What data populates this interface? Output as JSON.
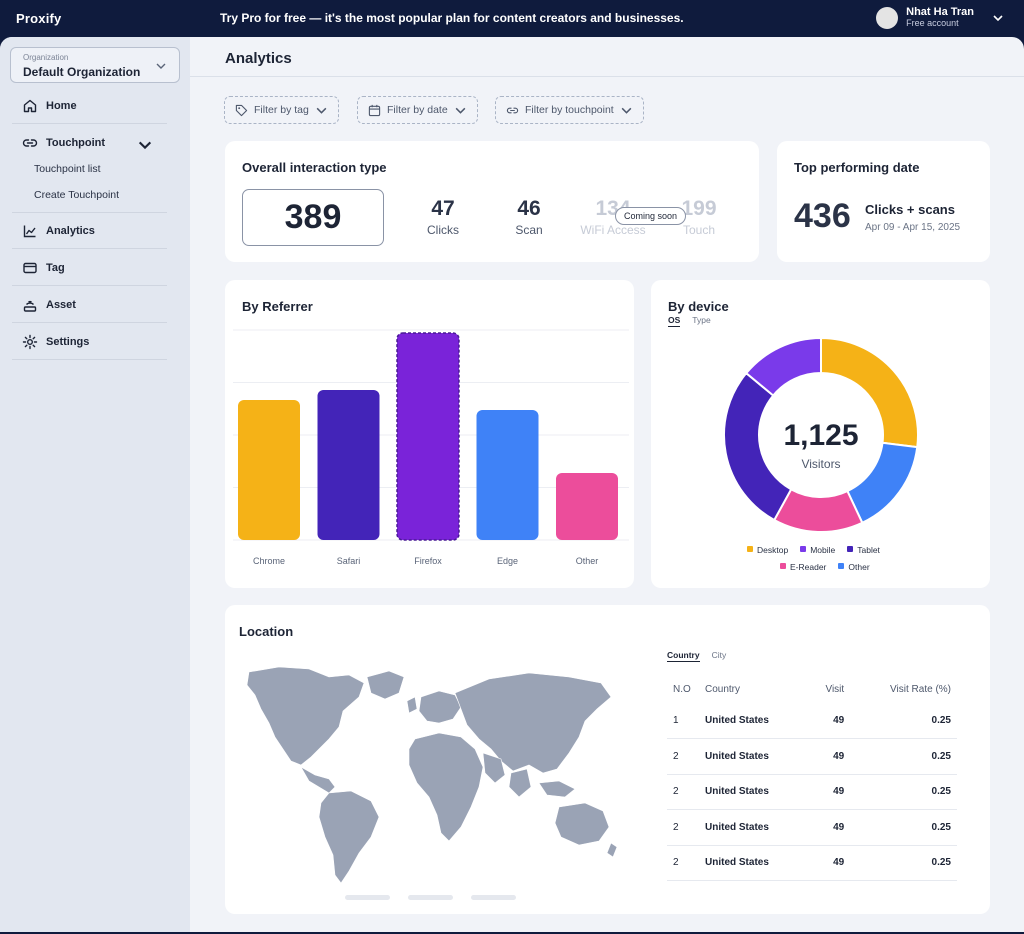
{
  "topbar": {
    "brand": "Proxify",
    "promo": "Try Pro for free — it's the most popular plan for content creators and businesses.",
    "user_name": "Nhat Ha Tran",
    "user_plan": "Free account"
  },
  "sidebar": {
    "org_label": "Organization",
    "org_name": "Default Organization",
    "items": [
      {
        "label": "Home",
        "icon": "home-icon"
      },
      {
        "label": "Touchpoint",
        "icon": "link-icon"
      },
      {
        "label": "Analytics",
        "icon": "chart-icon"
      },
      {
        "label": "Tag",
        "icon": "tag-card-icon"
      },
      {
        "label": "Asset",
        "icon": "asset-icon"
      },
      {
        "label": "Settings",
        "icon": "gear-icon"
      }
    ],
    "touchpoint_sub": [
      "Touchpoint list",
      "Create Touchpoint"
    ]
  },
  "page": {
    "title": "Analytics",
    "filters": [
      "Filter by tag",
      "Filter by date",
      "Filter by touchpoint"
    ]
  },
  "overall": {
    "title": "Overall interaction type",
    "total": "389",
    "stats": [
      {
        "num": "47",
        "label": "Clicks"
      },
      {
        "num": "46",
        "label": "Scan"
      },
      {
        "num": "134",
        "label": "WiFi Access"
      },
      {
        "num": "199",
        "label": "Touch"
      }
    ],
    "coming_soon": "Coming soon"
  },
  "top_date": {
    "title": "Top performing date",
    "value": "436",
    "metric": "Clicks + scans",
    "range": "Apr 09 - Apr 15, 2025"
  },
  "referrer": {
    "title": "By Referrer"
  },
  "device": {
    "title": "By device",
    "tabs": [
      "OS",
      "Type"
    ],
    "center_value": "1,125",
    "center_label": "Visitors"
  },
  "location": {
    "title": "Location",
    "tabs": [
      "Country",
      "City"
    ],
    "columns": [
      "N.O",
      "Country",
      "Visit",
      "Visit Rate (%)"
    ],
    "rows": [
      {
        "no": "1",
        "country": "United States",
        "visit": "49",
        "rate": "0.25"
      },
      {
        "no": "2",
        "country": "United States",
        "visit": "49",
        "rate": "0.25"
      },
      {
        "no": "2",
        "country": "United States",
        "visit": "49",
        "rate": "0.25"
      },
      {
        "no": "2",
        "country": "United States",
        "visit": "49",
        "rate": "0.25"
      },
      {
        "no": "2",
        "country": "United States",
        "visit": "49",
        "rate": "0.25"
      }
    ]
  },
  "chart_data": [
    {
      "type": "bar",
      "title": "By Referrer",
      "categories": [
        "Chrome",
        "Safari",
        "Firefox",
        "Edge",
        "Other"
      ],
      "values": [
        140,
        150,
        207,
        130,
        67
      ],
      "colors": [
        "#f5b217",
        "#4324b8",
        "#7a23d9",
        "#3f82f7",
        "#ec4d9b"
      ],
      "ylim": [
        0,
        210
      ],
      "grid": true
    },
    {
      "type": "pie",
      "title": "By device",
      "categories": [
        "Desktop",
        "Mobile",
        "Tablet",
        "E-Reader",
        "Other"
      ],
      "values": [
        0.27,
        0.14,
        0.28,
        0.15,
        0.16
      ],
      "colors": [
        "#f5b217",
        "#7a3aea",
        "#4324b8",
        "#ec4d9b",
        "#3f82f7"
      ],
      "order": [
        "Desktop",
        "Other",
        "E-Reader",
        "Tablet",
        "Mobile"
      ],
      "legend": "bottom"
    }
  ]
}
